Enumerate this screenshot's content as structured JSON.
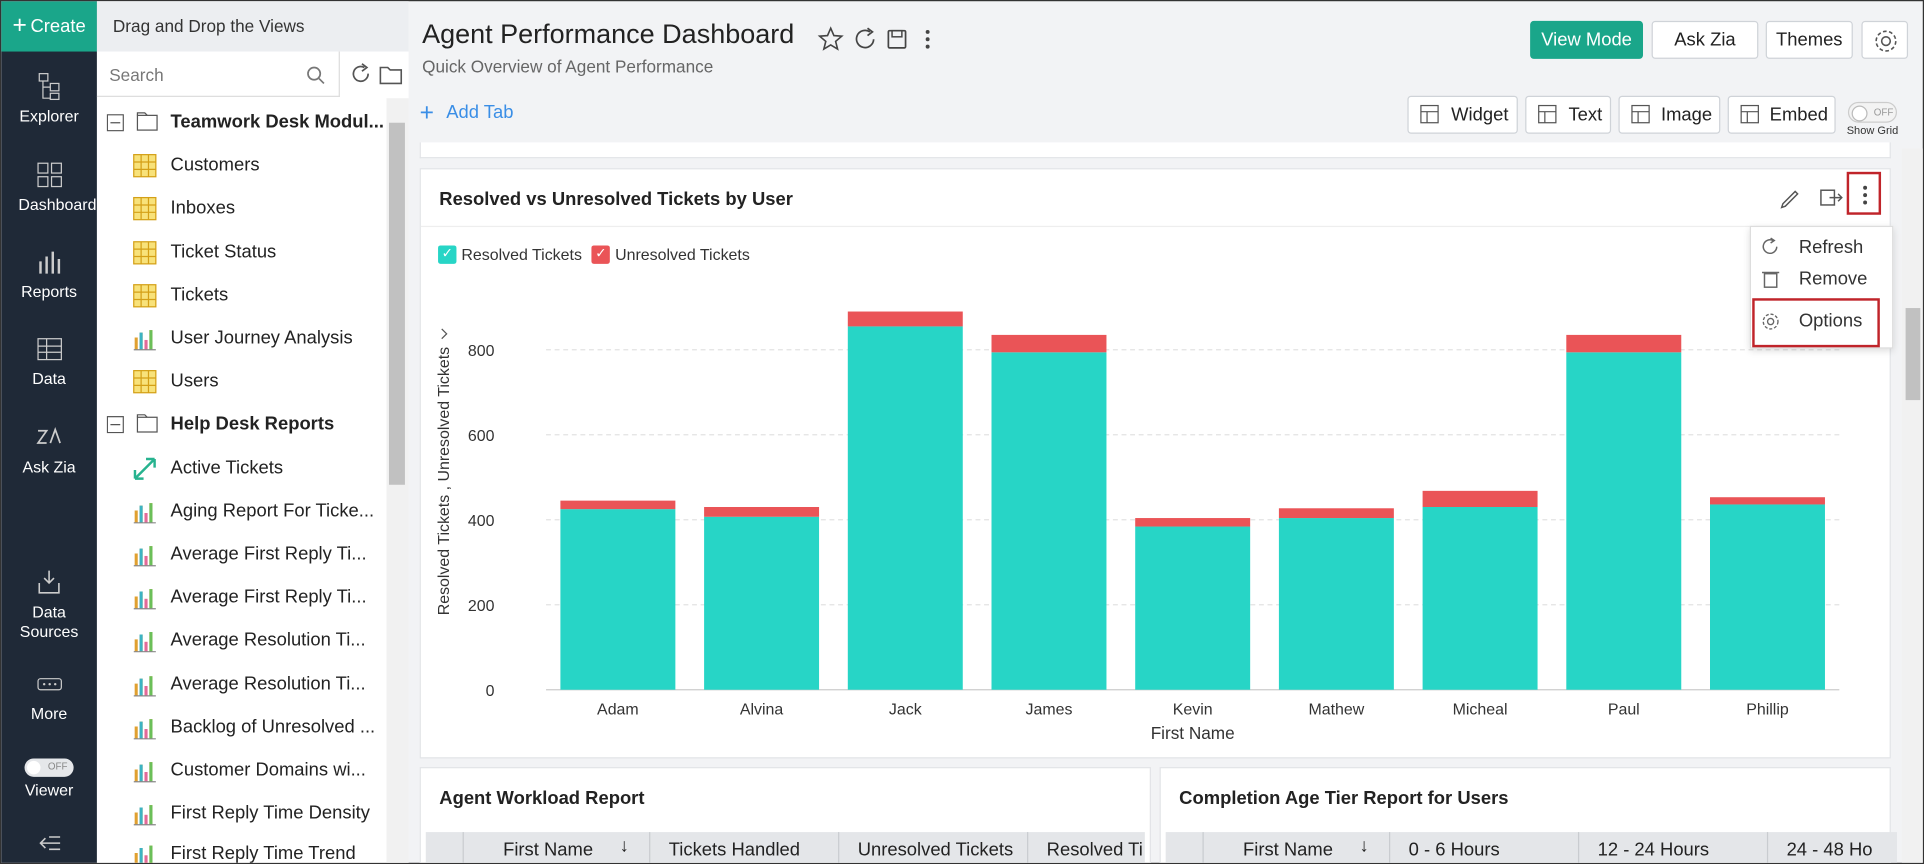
{
  "sidebar": {
    "create": "Create",
    "items": [
      "Explorer",
      "Dashboards",
      "Reports",
      "Data",
      "Ask Zia",
      "Data Sources",
      "More"
    ],
    "viewer_toggle": "OFF",
    "viewer": "Viewer"
  },
  "explorer": {
    "heading": "Drag and Drop the Views",
    "search": "Search",
    "items": [
      "Teamwork Desk Modul...",
      "Customers",
      "Inboxes",
      "Ticket Status",
      "Tickets",
      "User Journey Analysis",
      "Users",
      "Help Desk Reports",
      "Active Tickets",
      "Aging Report For Ticke...",
      "Average First Reply Ti...",
      "Average First Reply Ti...",
      "Average Resolution Ti...",
      "Average Resolution Ti...",
      "Backlog of Unresolved ...",
      "Customer Domains wi...",
      "First Reply Time Density",
      "First Reply Time Trend"
    ]
  },
  "header": {
    "title": "Agent Performance Dashboard",
    "subtitle": "Quick Overview of Agent Performance",
    "buttons": [
      "View Mode",
      "Ask Zia",
      "Themes"
    ]
  },
  "toolbar": {
    "add_tab": "Add Tab",
    "buttons": [
      "Widget",
      "Text",
      "Image",
      "Embed"
    ],
    "grid_toggle": "OFF",
    "grid_label": "Show Grid"
  },
  "menu": [
    "Refresh",
    "Remove",
    "Options"
  ],
  "chart_data": {
    "type": "bar",
    "stacked": true,
    "title": "Resolved vs Unresolved Tickets by User",
    "x_label": "First Name",
    "y_label": "Resolved Tickets , Unresolved Tickets",
    "categories": [
      "Adam",
      "Alvina",
      "Jack",
      "James",
      "Kevin",
      "Mathew",
      "Micheal",
      "Paul",
      "Phillip"
    ],
    "series": [
      {
        "name": "Resolved Tickets",
        "color": "#27d5c6",
        "values": [
          425,
          407,
          855,
          794,
          384,
          404,
          430,
          794,
          436
        ]
      },
      {
        "name": "Unresolved Tickets",
        "color": "#ea5457",
        "values": [
          20,
          23,
          35,
          41,
          20,
          23,
          38,
          41,
          17
        ]
      }
    ],
    "ylim": [
      0,
      900
    ],
    "yticks": [
      0,
      200,
      400,
      600,
      800
    ],
    "grid": true
  },
  "widgets": [
    {
      "title": "Agent Workload Report",
      "columns": [
        "First Name",
        "Tickets Handled",
        "Unresolved Tickets",
        "Resolved Ti"
      ]
    },
    {
      "title": "Completion Age Tier Report for Users",
      "columns": [
        "First Name",
        "0 - 6 Hours",
        "12 - 24 Hours",
        "24 - 48 Ho"
      ]
    }
  ]
}
